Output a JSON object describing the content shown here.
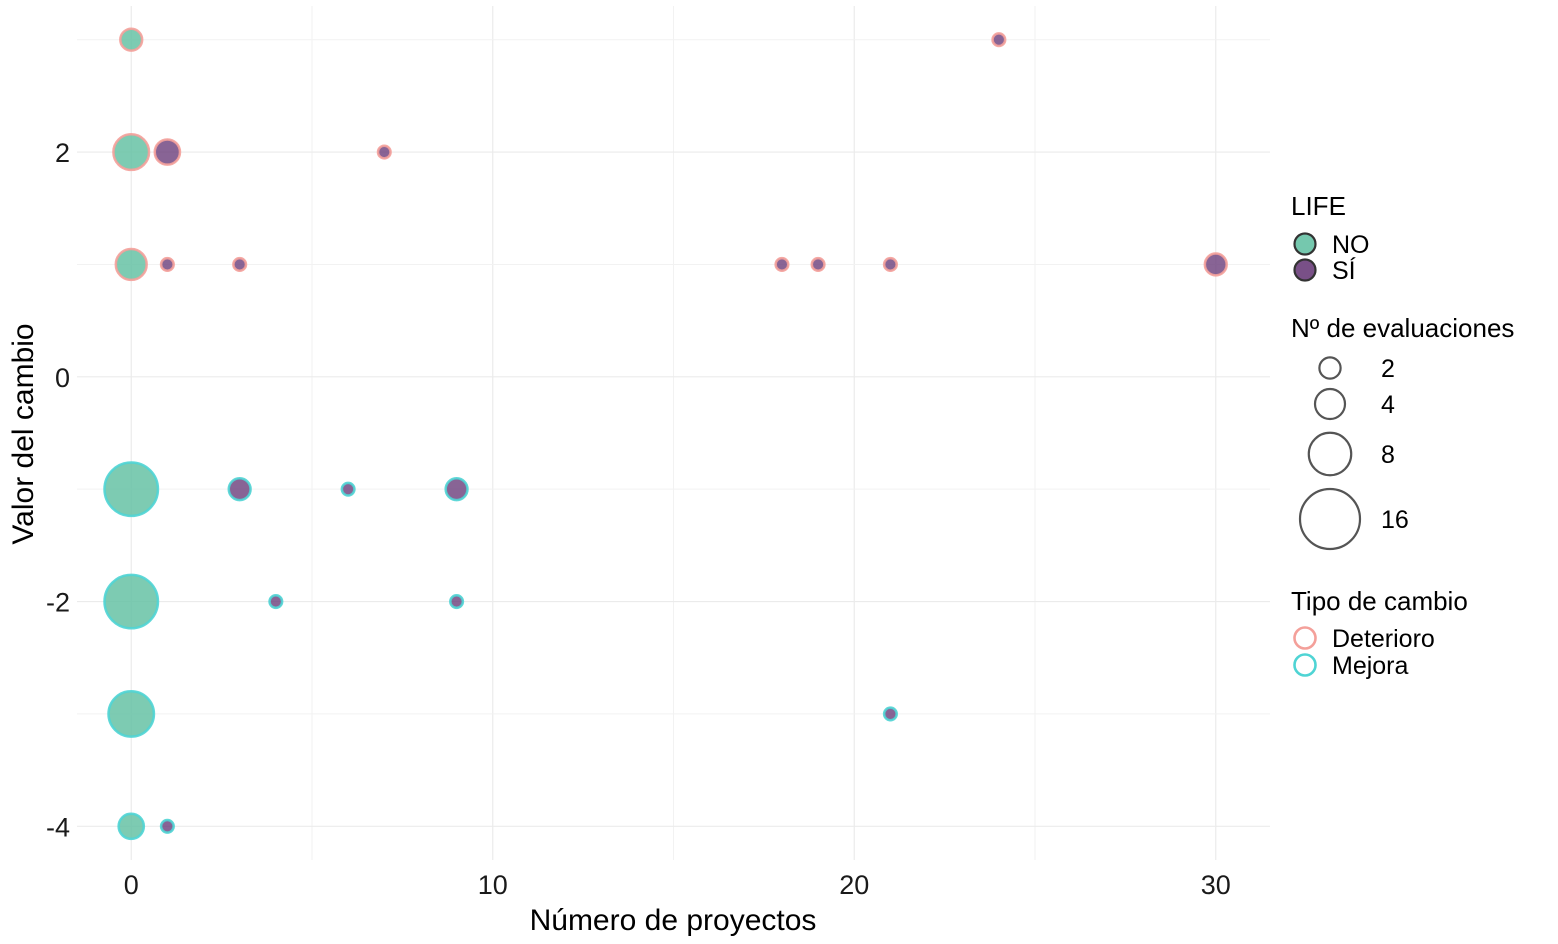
{
  "chart_data": {
    "type": "scatter",
    "xlabel": "Número de proyectos",
    "ylabel": "Valor del cambio",
    "xlim": [
      -1.5,
      31.5
    ],
    "ylim": [
      -4.3,
      3.3
    ],
    "x_ticks": [
      0,
      10,
      20,
      30
    ],
    "y_ticks": [
      -4,
      -2,
      0,
      2
    ],
    "grid": true,
    "legend_placement": "right",
    "colors": {
      "NO": "#66c2a5",
      "SÍ": "#6a3d7a",
      "Deterioro": "#f4a09a",
      "Mejora": "#4fd4d4",
      "size_ring": "#555555"
    },
    "legends": {
      "life": {
        "title": "LIFE",
        "items": [
          "NO",
          "SÍ"
        ]
      },
      "size": {
        "title": "Nº de evaluaciones",
        "items": [
          2,
          4,
          8,
          16
        ]
      },
      "tipo": {
        "title": "Tipo de cambio",
        "items": [
          "Deterioro",
          "Mejora"
        ]
      }
    },
    "points": [
      {
        "x": 0,
        "y": 3,
        "n": 3,
        "life": "NO",
        "tipo": "Deterioro"
      },
      {
        "x": 24,
        "y": 3,
        "n": 1,
        "life": "SÍ",
        "tipo": "Deterioro"
      },
      {
        "x": 0,
        "y": 2,
        "n": 8,
        "life": "NO",
        "tipo": "Deterioro"
      },
      {
        "x": 1,
        "y": 2,
        "n": 4,
        "life": "SÍ",
        "tipo": "Deterioro"
      },
      {
        "x": 7,
        "y": 2,
        "n": 1,
        "life": "SÍ",
        "tipo": "Deterioro"
      },
      {
        "x": 0,
        "y": 1,
        "n": 6,
        "life": "NO",
        "tipo": "Deterioro"
      },
      {
        "x": 1,
        "y": 1,
        "n": 1,
        "life": "SÍ",
        "tipo": "Deterioro"
      },
      {
        "x": 3,
        "y": 1,
        "n": 1,
        "life": "SÍ",
        "tipo": "Deterioro"
      },
      {
        "x": 18,
        "y": 1,
        "n": 1,
        "life": "SÍ",
        "tipo": "Deterioro"
      },
      {
        "x": 19,
        "y": 1,
        "n": 1,
        "life": "SÍ",
        "tipo": "Deterioro"
      },
      {
        "x": 21,
        "y": 1,
        "n": 1,
        "life": "SÍ",
        "tipo": "Deterioro"
      },
      {
        "x": 30,
        "y": 1,
        "n": 3,
        "life": "SÍ",
        "tipo": "Deterioro"
      },
      {
        "x": 0,
        "y": -1,
        "n": 18,
        "life": "NO",
        "tipo": "Mejora"
      },
      {
        "x": 3,
        "y": -1,
        "n": 3,
        "life": "SÍ",
        "tipo": "Mejora"
      },
      {
        "x": 6,
        "y": -1,
        "n": 1,
        "life": "SÍ",
        "tipo": "Mejora"
      },
      {
        "x": 9,
        "y": -1,
        "n": 3,
        "life": "SÍ",
        "tipo": "Mejora"
      },
      {
        "x": 0,
        "y": -2,
        "n": 18,
        "life": "NO",
        "tipo": "Mejora"
      },
      {
        "x": 4,
        "y": -2,
        "n": 1,
        "life": "SÍ",
        "tipo": "Mejora"
      },
      {
        "x": 9,
        "y": -2,
        "n": 1,
        "life": "SÍ",
        "tipo": "Mejora"
      },
      {
        "x": 0,
        "y": -3,
        "n": 13,
        "life": "NO",
        "tipo": "Mejora"
      },
      {
        "x": 21,
        "y": -3,
        "n": 1,
        "life": "SÍ",
        "tipo": "Mejora"
      },
      {
        "x": 0,
        "y": -4,
        "n": 4,
        "life": "NO",
        "tipo": "Mejora"
      },
      {
        "x": 1,
        "y": -4,
        "n": 1,
        "life": "SÍ",
        "tipo": "Mejora"
      }
    ]
  }
}
